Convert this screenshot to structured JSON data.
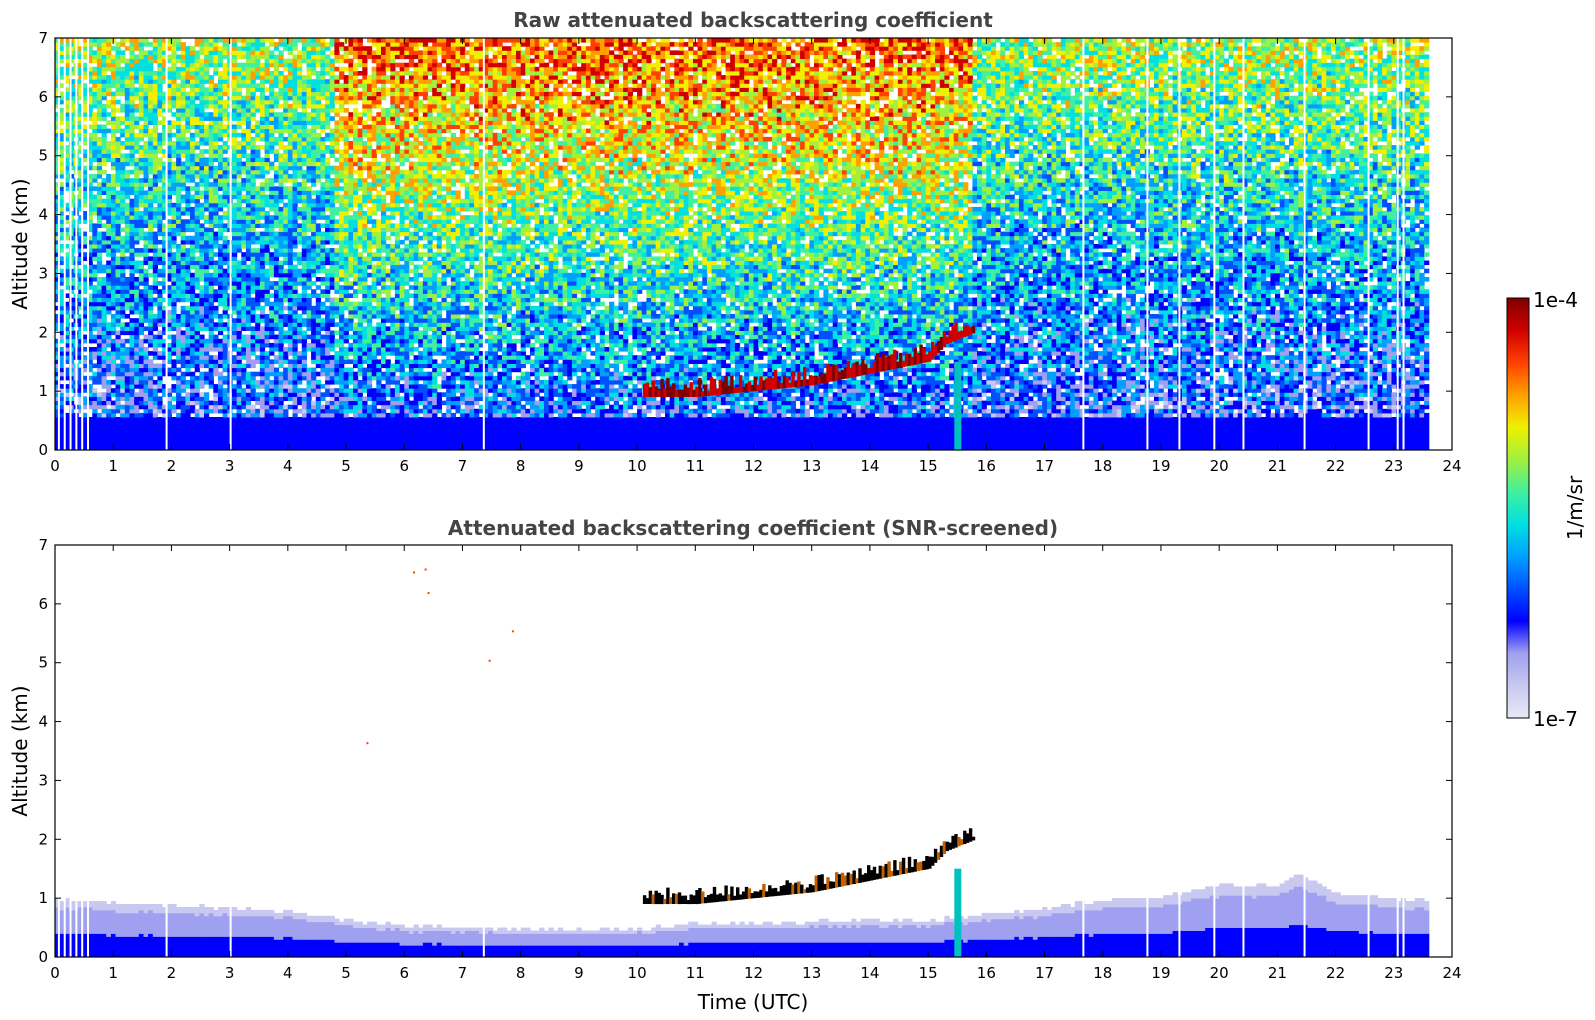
{
  "chart_data": [
    {
      "type": "heatmap",
      "title": "Raw attenuated backscattering coefficient",
      "xlabel": "",
      "ylabel": "Altitude (km)",
      "xlim": [
        0,
        24
      ],
      "ylim": [
        0,
        7
      ],
      "xticks": [
        "0",
        "1",
        "2",
        "3",
        "4",
        "5",
        "6",
        "7",
        "8",
        "9",
        "10",
        "11",
        "12",
        "13",
        "14",
        "15",
        "16",
        "17",
        "18",
        "19",
        "20",
        "21",
        "22",
        "23",
        "24"
      ],
      "yticks": [
        "0",
        "1",
        "2",
        "3",
        "4",
        "5",
        "6",
        "7"
      ],
      "data_end_time": 23.55,
      "boundary_layer_top_km": 0.55,
      "cloud_layer": {
        "description_points": [
          [
            10.1,
            0.9
          ],
          [
            11,
            0.9
          ],
          [
            12,
            1.0
          ],
          [
            13,
            1.1
          ],
          [
            14,
            1.3
          ],
          [
            15,
            1.5
          ],
          [
            15.3,
            1.8
          ],
          [
            15.8,
            2.0
          ]
        ],
        "rain_streak_time": 15.5
      },
      "noise_regimes": [
        {
          "from": 0,
          "to": 4.8,
          "level": "low"
        },
        {
          "from": 4.8,
          "to": 15.7,
          "level": "high"
        },
        {
          "from": 15.7,
          "to": 23.55,
          "level": "low"
        }
      ],
      "gap_times": [
        0.05,
        0.15,
        0.25,
        0.35,
        0.45,
        0.55,
        1.9,
        3.0,
        7.35,
        17.65,
        18.75,
        19.3,
        19.9,
        20.4,
        21.45,
        22.55,
        23.05,
        23.15
      ]
    },
    {
      "type": "heatmap",
      "title": "Attenuated backscattering coefficient (SNR-screened)",
      "xlabel": "Time (UTC)",
      "ylabel": "Altitude (km)",
      "xlim": [
        0,
        24
      ],
      "ylim": [
        0,
        7
      ],
      "xticks": [
        "0",
        "1",
        "2",
        "3",
        "4",
        "5",
        "6",
        "7",
        "8",
        "9",
        "10",
        "11",
        "12",
        "13",
        "14",
        "15",
        "16",
        "17",
        "18",
        "19",
        "20",
        "21",
        "22",
        "23",
        "24"
      ],
      "yticks": [
        "0",
        "1",
        "2",
        "3",
        "4",
        "5",
        "6",
        "7"
      ],
      "data_end_time": 23.55,
      "screened_layer_top_km": [
        [
          0,
          0.95
        ],
        [
          2,
          0.85
        ],
        [
          4,
          0.75
        ],
        [
          5,
          0.6
        ],
        [
          6,
          0.5
        ],
        [
          8,
          0.45
        ],
        [
          10,
          0.45
        ],
        [
          11,
          0.55
        ],
        [
          12,
          0.55
        ],
        [
          14,
          0.6
        ],
        [
          15,
          0.6
        ],
        [
          16,
          0.7
        ],
        [
          17,
          0.8
        ],
        [
          18,
          0.95
        ],
        [
          19,
          1.0
        ],
        [
          20,
          1.2
        ],
        [
          21,
          1.2
        ],
        [
          21.3,
          1.4
        ],
        [
          22,
          1.05
        ],
        [
          23,
          0.95
        ],
        [
          23.55,
          0.95
        ]
      ],
      "isolated_points": [
        [
          6.15,
          6.55
        ],
        [
          6.35,
          6.6
        ],
        [
          6.4,
          6.2
        ],
        [
          7.85,
          5.55
        ],
        [
          7.45,
          5.05
        ],
        [
          5.35,
          3.65
        ]
      ]
    }
  ],
  "colorbar": {
    "label": "1/m/sr",
    "max_label": "1e-4",
    "min_label": "1e-7",
    "colors": [
      "#e8e8f8",
      "#c8c8f0",
      "#a0a0f0",
      "#0000ff",
      "#0050ff",
      "#00a0ff",
      "#00e0e0",
      "#40f0a0",
      "#a0f040",
      "#f0f000",
      "#ffa000",
      "#ff4000",
      "#d00000",
      "#800000"
    ]
  }
}
